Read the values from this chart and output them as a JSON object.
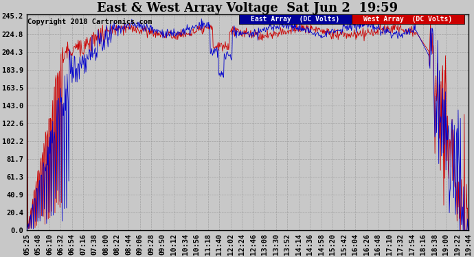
{
  "title": "East & West Array Voltage  Sat Jun 2  19:59",
  "copyright": "Copyright 2018 Cartronics.com",
  "bg_color": "#c8c8c8",
  "plot_bg_color": "#c8c8c8",
  "grid_color": "#999999",
  "east_color": "#0000cc",
  "west_color": "#cc0000",
  "legend_east": "East Array  (DC Volts)",
  "legend_west": "West Array  (DC Volts)",
  "legend_east_bg": "#000099",
  "legend_west_bg": "#cc0000",
  "yticks": [
    0.0,
    20.4,
    40.9,
    61.3,
    81.7,
    102.2,
    122.6,
    143.0,
    163.5,
    183.9,
    204.3,
    224.8,
    245.2
  ],
  "ymin": 0.0,
  "ymax": 245.2,
  "xtick_labels": [
    "05:25",
    "05:48",
    "06:10",
    "06:32",
    "06:54",
    "07:16",
    "07:38",
    "08:00",
    "08:22",
    "08:44",
    "09:06",
    "09:28",
    "09:50",
    "10:12",
    "10:34",
    "10:56",
    "11:18",
    "11:40",
    "12:02",
    "12:24",
    "12:46",
    "13:08",
    "13:30",
    "13:52",
    "14:14",
    "14:36",
    "14:58",
    "15:20",
    "15:42",
    "16:04",
    "16:26",
    "16:48",
    "17:10",
    "17:32",
    "17:54",
    "18:16",
    "18:38",
    "19:00",
    "19:22",
    "19:44"
  ],
  "title_fontsize": 13,
  "tick_fontsize": 7.5,
  "copyright_fontsize": 7.5
}
